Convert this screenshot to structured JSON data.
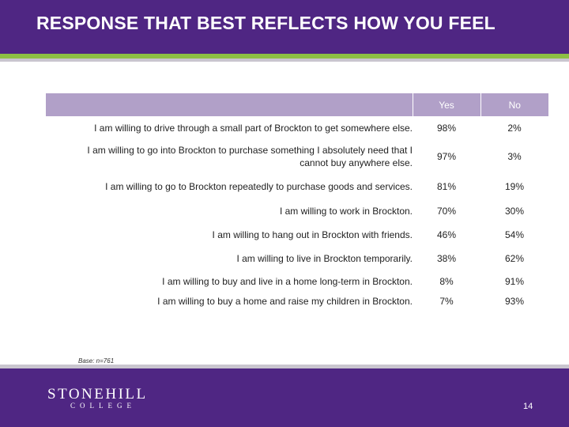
{
  "title": "RESPONSE THAT BEST REFLECTS HOW YOU FEEL",
  "table": {
    "columns": [
      "",
      "Yes",
      "No"
    ],
    "rows": [
      {
        "statement": "I am willing to drive through a small part of Brockton to get somewhere else.",
        "yes": "98%",
        "no": "2%"
      },
      {
        "statement": "I am willing to go into Brockton to purchase something I absolutely need that I cannot buy anywhere else.",
        "yes": "97%",
        "no": "3%"
      },
      {
        "statement": "I am willing to go to Brockton repeatedly to purchase goods and services.",
        "yes": "81%",
        "no": "19%"
      },
      {
        "statement": "I am willing to work in Brockton.",
        "yes": "70%",
        "no": "30%"
      },
      {
        "statement": "I am willing to hang out in Brockton with friends.",
        "yes": "46%",
        "no": "54%"
      },
      {
        "statement": "I am willing to live in Brockton temporarily.",
        "yes": "38%",
        "no": "62%"
      },
      {
        "statement": "I am willing to buy and live in a home long-term in Brockton.",
        "yes": "8%",
        "no": "91%"
      },
      {
        "statement": "I am willing to buy a home and raise my children in Brockton.",
        "yes": "7%",
        "no": "93%"
      }
    ]
  },
  "base_note": "Base: n=761",
  "logo": {
    "name": "STONEHILL",
    "sub": "COLLEGE"
  },
  "page_number": "14",
  "colors": {
    "header": "#4f2683",
    "accent_green": "#8dbf44",
    "table_header": "#b1a0c8"
  }
}
